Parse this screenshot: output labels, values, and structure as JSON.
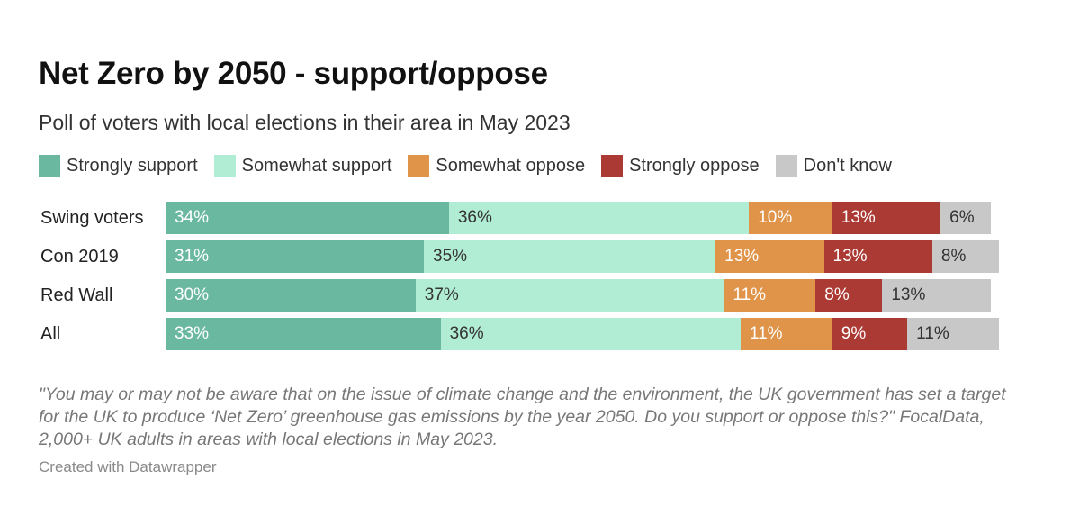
{
  "chart_data": {
    "type": "bar",
    "orientation": "horizontal",
    "stacked": true,
    "title": "Net Zero by 2050 - support/oppose",
    "subtitle": "Poll of voters with local elections in their area in May 2023",
    "categories": [
      "Swing voters",
      "Con 2019",
      "Red Wall",
      "All"
    ],
    "series": [
      {
        "name": "Strongly support",
        "color": "#6bb8a0",
        "label_color": "#ffffff",
        "values": [
          34,
          31,
          30,
          33
        ]
      },
      {
        "name": "Somewhat support",
        "color": "#b1ecd5",
        "label_color": "#333333",
        "values": [
          36,
          35,
          37,
          36
        ]
      },
      {
        "name": "Somewhat oppose",
        "color": "#e0944a",
        "label_color": "#ffffff",
        "values": [
          10,
          13,
          11,
          11
        ]
      },
      {
        "name": "Strongly oppose",
        "color": "#aa3a33",
        "label_color": "#ffffff",
        "values": [
          13,
          13,
          8,
          9
        ]
      },
      {
        "name": "Don't know",
        "color": "#c8c8c8",
        "label_color": "#333333",
        "values": [
          6,
          8,
          13,
          11
        ]
      }
    ],
    "value_suffix": "%",
    "legend_position": "top-left",
    "grid": false
  },
  "notes": "\"You may or may not be aware that on the issue of climate change and the environment, the UK government has set a target for the UK to produce ‘Net Zero’ greenhouse gas emissions by the year 2050. Do you support or oppose this?\" FocalData, 2,000+ UK adults in areas with local elections in May 2023.",
  "credit": "Created with Datawrapper"
}
